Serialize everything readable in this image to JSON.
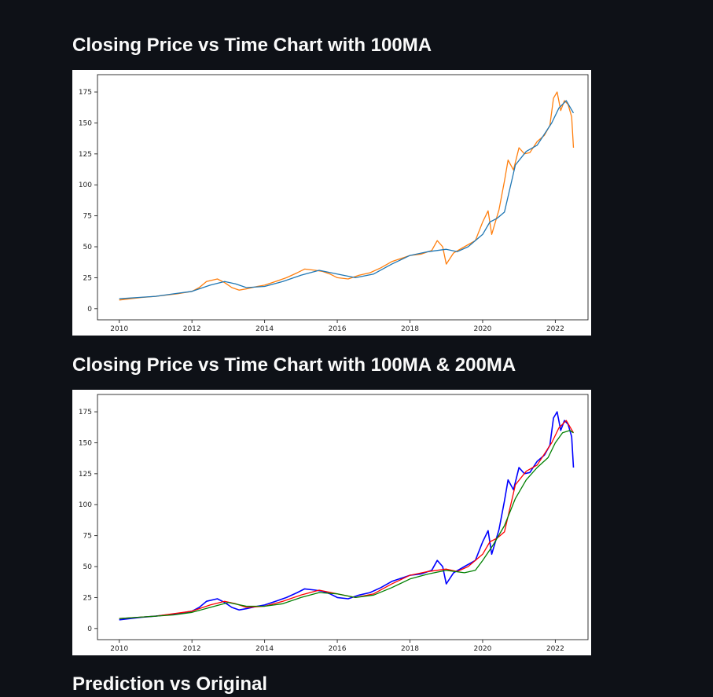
{
  "headings": {
    "chart1": "Closing Price vs Time Chart with 100MA",
    "chart2": "Closing Price vs Time Chart with 100MA & 200MA",
    "section3": "Prediction vs Original"
  },
  "colors": {
    "background": "#0e1117",
    "heading_text": "#fafafa",
    "close_orange": "#ff7f0e",
    "ma100_blue": "#1f77b4",
    "close_blue": "#0000ff",
    "ma100_red": "#ff0000",
    "ma200_green": "#008000"
  },
  "chart_data": [
    {
      "type": "line",
      "title": "",
      "xlabel": "",
      "ylabel": "",
      "xlim": [
        2009.4,
        2022.9
      ],
      "ylim": [
        -9,
        189
      ],
      "xticks": [
        2010,
        2012,
        2014,
        2016,
        2018,
        2020,
        2022
      ],
      "yticks": [
        0,
        25,
        50,
        75,
        100,
        125,
        150,
        175
      ],
      "grid": false,
      "legend": "none",
      "series": [
        {
          "color": "#ff7f0e",
          "width": 1.3,
          "x": [
            2010.0,
            2010.3,
            2010.6,
            2011.0,
            2011.3,
            2011.6,
            2012.0,
            2012.2,
            2012.4,
            2012.7,
            2012.9,
            2013.1,
            2013.3,
            2013.5,
            2013.8,
            2014.0,
            2014.3,
            2014.6,
            2014.9,
            2015.1,
            2015.4,
            2015.6,
            2015.8,
            2016.0,
            2016.3,
            2016.6,
            2016.9,
            2017.2,
            2017.5,
            2017.8,
            2018.0,
            2018.3,
            2018.6,
            2018.75,
            2018.9,
            2019.0,
            2019.2,
            2019.5,
            2019.8,
            2020.0,
            2020.15,
            2020.25,
            2020.45,
            2020.6,
            2020.7,
            2020.85,
            2021.0,
            2021.15,
            2021.3,
            2021.5,
            2021.7,
            2021.85,
            2021.95,
            2022.05,
            2022.15,
            2022.25,
            2022.35,
            2022.45,
            2022.5
          ],
          "y": [
            7,
            8,
            9,
            10,
            11,
            12,
            14,
            17,
            22,
            24,
            21,
            17,
            15,
            16,
            18,
            19,
            22,
            25,
            29,
            32,
            31,
            30,
            28,
            25,
            24,
            27,
            29,
            33,
            38,
            41,
            43,
            44,
            47,
            55,
            50,
            36,
            45,
            50,
            55,
            70,
            79,
            60,
            80,
            103,
            120,
            112,
            130,
            125,
            126,
            135,
            140,
            148,
            170,
            175,
            160,
            168,
            165,
            155,
            130
          ]
        },
        {
          "color": "#1f77b4",
          "width": 1.3,
          "x": [
            2010.0,
            2010.5,
            2011.0,
            2011.5,
            2012.0,
            2012.5,
            2012.9,
            2013.2,
            2013.5,
            2014.0,
            2014.5,
            2015.0,
            2015.5,
            2016.0,
            2016.5,
            2017.0,
            2017.5,
            2018.0,
            2018.5,
            2019.0,
            2019.3,
            2019.6,
            2020.0,
            2020.2,
            2020.4,
            2020.6,
            2020.9,
            2021.2,
            2021.5,
            2021.9,
            2022.1,
            2022.3,
            2022.5
          ],
          "y": [
            8,
            9,
            10,
            12,
            14,
            19,
            22,
            20,
            17,
            18,
            22,
            27,
            31,
            28,
            25,
            28,
            36,
            43,
            46,
            48,
            46,
            50,
            60,
            70,
            73,
            78,
            116,
            127,
            132,
            150,
            162,
            168,
            158
          ]
        }
      ]
    },
    {
      "type": "line",
      "title": "",
      "xlabel": "",
      "ylabel": "",
      "xlim": [
        2009.4,
        2022.9
      ],
      "ylim": [
        -9,
        189
      ],
      "xticks": [
        2010,
        2012,
        2014,
        2016,
        2018,
        2020,
        2022
      ],
      "yticks": [
        0,
        25,
        50,
        75,
        100,
        125,
        150,
        175
      ],
      "grid": false,
      "legend": "none",
      "series": [
        {
          "color": "#0000ff",
          "width": 1.6,
          "x": [
            2010.0,
            2010.3,
            2010.6,
            2011.0,
            2011.3,
            2011.6,
            2012.0,
            2012.2,
            2012.4,
            2012.7,
            2012.9,
            2013.1,
            2013.3,
            2013.5,
            2013.8,
            2014.0,
            2014.3,
            2014.6,
            2014.9,
            2015.1,
            2015.4,
            2015.6,
            2015.8,
            2016.0,
            2016.3,
            2016.6,
            2016.9,
            2017.2,
            2017.5,
            2017.8,
            2018.0,
            2018.3,
            2018.6,
            2018.75,
            2018.9,
            2019.0,
            2019.2,
            2019.5,
            2019.8,
            2020.0,
            2020.15,
            2020.25,
            2020.45,
            2020.6,
            2020.7,
            2020.85,
            2021.0,
            2021.15,
            2021.3,
            2021.5,
            2021.7,
            2021.85,
            2021.95,
            2022.05,
            2022.15,
            2022.25,
            2022.35,
            2022.45,
            2022.5
          ],
          "y": [
            7,
            8,
            9,
            10,
            11,
            12,
            14,
            17,
            22,
            24,
            21,
            17,
            15,
            16,
            18,
            19,
            22,
            25,
            29,
            32,
            31,
            30,
            28,
            25,
            24,
            27,
            29,
            33,
            38,
            41,
            43,
            44,
            47,
            55,
            50,
            36,
            45,
            50,
            55,
            70,
            79,
            60,
            80,
            103,
            120,
            112,
            130,
            125,
            126,
            135,
            140,
            148,
            170,
            175,
            160,
            168,
            165,
            155,
            130
          ]
        },
        {
          "color": "#ff0000",
          "width": 1.3,
          "x": [
            2010.0,
            2010.5,
            2011.0,
            2011.5,
            2012.0,
            2012.5,
            2012.9,
            2013.2,
            2013.5,
            2014.0,
            2014.5,
            2015.0,
            2015.5,
            2016.0,
            2016.5,
            2017.0,
            2017.5,
            2018.0,
            2018.5,
            2019.0,
            2019.3,
            2019.6,
            2020.0,
            2020.2,
            2020.4,
            2020.6,
            2020.9,
            2021.2,
            2021.5,
            2021.9,
            2022.1,
            2022.3,
            2022.5
          ],
          "y": [
            8,
            9,
            10,
            12,
            14,
            19,
            22,
            20,
            17,
            18,
            22,
            27,
            31,
            28,
            25,
            28,
            36,
            43,
            46,
            48,
            46,
            50,
            60,
            70,
            73,
            78,
            116,
            127,
            132,
            150,
            162,
            168,
            158
          ]
        },
        {
          "color": "#008000",
          "width": 1.3,
          "x": [
            2010.0,
            2010.5,
            2011.0,
            2011.5,
            2012.0,
            2012.5,
            2013.0,
            2013.5,
            2014.0,
            2014.5,
            2015.0,
            2015.5,
            2016.0,
            2016.5,
            2017.0,
            2017.5,
            2018.0,
            2018.5,
            2019.0,
            2019.5,
            2019.8,
            2020.0,
            2020.3,
            2020.6,
            2020.9,
            2021.2,
            2021.5,
            2021.8,
            2022.0,
            2022.2,
            2022.4,
            2022.5
          ],
          "y": [
            8,
            9,
            10,
            11,
            13,
            17,
            21,
            18,
            18,
            20,
            25,
            29,
            28,
            25,
            27,
            33,
            40,
            44,
            47,
            45,
            47,
            55,
            68,
            83,
            105,
            120,
            130,
            138,
            150,
            158,
            160,
            158
          ]
        }
      ]
    }
  ]
}
